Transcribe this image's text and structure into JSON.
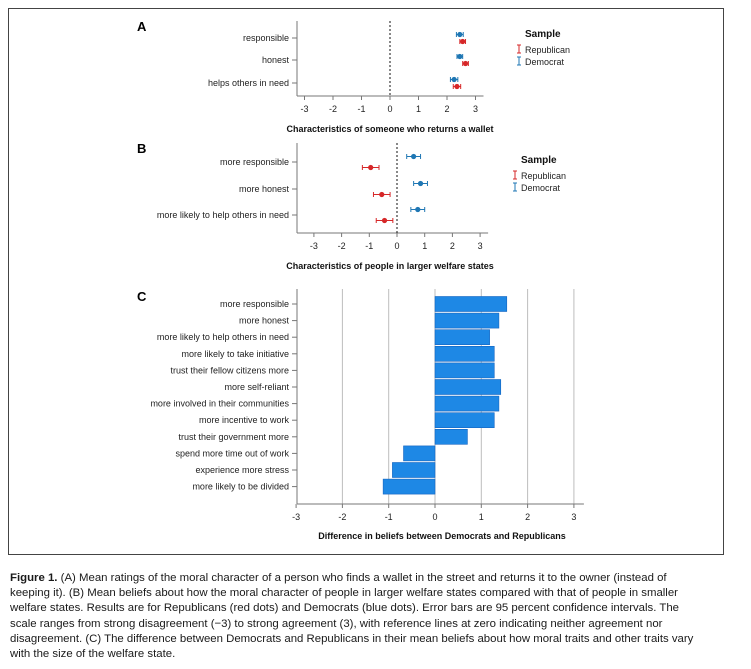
{
  "chart_data": [
    {
      "panel": "A",
      "type": "scatter",
      "xlabel": "Characteristics of someone who returns a wallet",
      "xlim": [
        -3,
        3
      ],
      "xticks": [
        -3,
        -2,
        -1,
        0,
        1,
        2,
        3
      ],
      "categories": [
        "responsible",
        "honest",
        "helps others in need"
      ],
      "legend": {
        "title": "Sample",
        "position": "right"
      },
      "series": [
        {
          "name": "Republican",
          "color": "#d62728",
          "values": [
            2.55,
            2.65,
            2.35
          ],
          "ci_low": [
            2.45,
            2.55,
            2.22
          ],
          "ci_high": [
            2.65,
            2.75,
            2.48
          ]
        },
        {
          "name": "Democrat",
          "color": "#1f77b4",
          "values": [
            2.45,
            2.45,
            2.25
          ],
          "ci_low": [
            2.33,
            2.35,
            2.12
          ],
          "ci_high": [
            2.57,
            2.55,
            2.38
          ]
        }
      ]
    },
    {
      "panel": "B",
      "type": "scatter",
      "xlabel": "Characteristics of people in larger welfare states",
      "xlim": [
        -3,
        3
      ],
      "xticks": [
        -3,
        -2,
        -1,
        0,
        1,
        2,
        3
      ],
      "categories": [
        "more responsible",
        "more honest",
        "more likely to help others in need"
      ],
      "legend": {
        "title": "Sample",
        "position": "right"
      },
      "series": [
        {
          "name": "Republican",
          "color": "#d62728",
          "values": [
            -0.95,
            -0.55,
            -0.45
          ],
          "ci_low": [
            -1.25,
            -0.85,
            -0.75
          ],
          "ci_high": [
            -0.65,
            -0.25,
            -0.15
          ]
        },
        {
          "name": "Democrat",
          "color": "#1f77b4",
          "values": [
            0.6,
            0.85,
            0.75
          ],
          "ci_low": [
            0.35,
            0.6,
            0.5
          ],
          "ci_high": [
            0.85,
            1.1,
            1.0
          ]
        }
      ]
    },
    {
      "panel": "C",
      "type": "bar",
      "orientation": "horizontal",
      "xlabel": "Difference in beliefs between Democrats and Republicans",
      "xlim": [
        -3,
        3
      ],
      "xticks": [
        -3,
        -2,
        -1,
        0,
        1,
        2,
        3
      ],
      "color": "#1e88e5",
      "categories": [
        "more responsible",
        "more honest",
        "more likely to help others in need",
        "more likely to take initiative",
        "trust their fellow citizens more",
        "more self-reliant",
        "more involved in their communities",
        "more incentive to work",
        "trust their government more",
        "spend more time out of work",
        "experience more stress",
        "more likely to be divided"
      ],
      "values": [
        1.55,
        1.38,
        1.18,
        1.28,
        1.28,
        1.42,
        1.38,
        1.28,
        0.7,
        -0.68,
        -0.92,
        -1.12
      ]
    }
  ],
  "caption": {
    "label": "Figure 1.",
    "lines": [
      "(A) Mean ratings of the moral character of a person who finds a wallet in the street and returns it to the owner (instead of",
      "keeping it). (B) Mean beliefs about how the moral character of people in larger welfare states compared with that of people in smaller",
      "welfare states. Results are for Republicans (red dots) and Democrats (blue dots). Error bars are 95 percent confidence intervals. The",
      "scale ranges from strong disagreement (−3) to strong agreement (3), with reference lines at zero indicating neither agreement nor",
      "disagreement. (C) The difference between Democrats and Republicans in their mean beliefs about how moral traits and other traits vary",
      "with the size of the welfare state."
    ]
  }
}
